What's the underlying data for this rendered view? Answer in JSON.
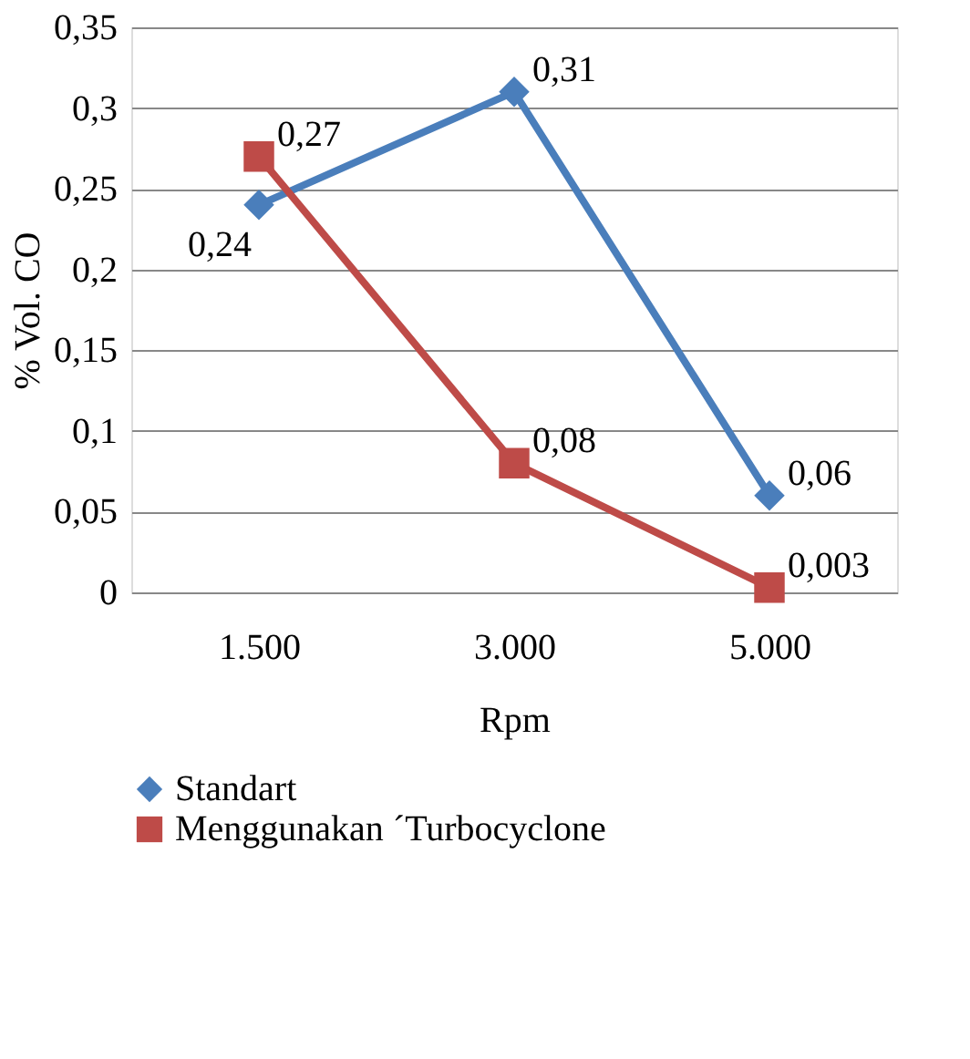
{
  "chart_data": {
    "type": "line",
    "xlabel": "Rpm",
    "ylabel": "% Vol. CO",
    "categories": [
      "1.500",
      "3.000",
      "5.000"
    ],
    "series": [
      {
        "name": "Standart",
        "color": "#4a7ebb",
        "marker": "diamond",
        "values": [
          0.24,
          0.31,
          0.06
        ],
        "value_labels": [
          "0,24",
          "0,31",
          "0,06"
        ]
      },
      {
        "name": "Menggunakan ´Turbocyclone",
        "color": "#be4b48",
        "marker": "square",
        "values": [
          0.27,
          0.08,
          0.003
        ],
        "value_labels": [
          "0,27",
          "0,08",
          "0,003"
        ]
      }
    ],
    "ylim": [
      0,
      0.35
    ],
    "yticks": [
      {
        "value": 0,
        "label": "0"
      },
      {
        "value": 0.05,
        "label": "0,05"
      },
      {
        "value": 0.1,
        "label": "0,1"
      },
      {
        "value": 0.15,
        "label": "0,15"
      },
      {
        "value": 0.2,
        "label": "0,2"
      },
      {
        "value": 0.25,
        "label": "0,25"
      },
      {
        "value": 0.3,
        "label": "0,3"
      },
      {
        "value": 0.35,
        "label": "0,35"
      }
    ],
    "grid": "y",
    "legend": "bottom",
    "line_style": "solid"
  }
}
